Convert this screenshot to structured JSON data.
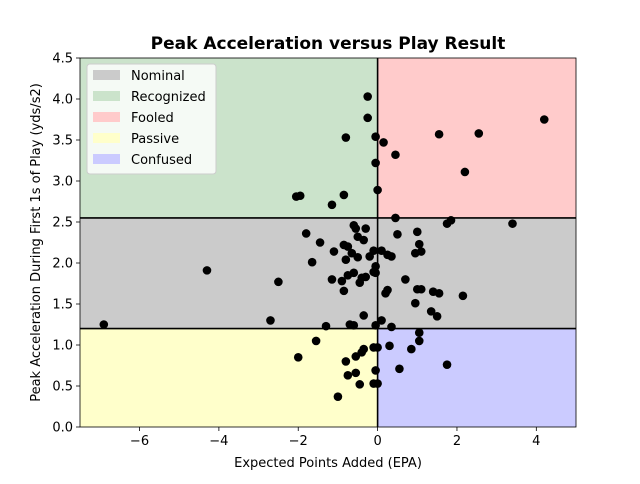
{
  "chart_data": {
    "type": "scatter",
    "title": "Peak Acceleration versus Play Result",
    "xlabel": "Expected Points Added (EPA)",
    "ylabel": "Peak Acceleration During First 1s of Play (yds/s2)",
    "xlim": [
      -7.5,
      5.0
    ],
    "ylim": [
      0.0,
      4.5
    ],
    "xticks": [
      -6,
      -4,
      -2,
      0,
      2,
      4
    ],
    "xtick_labels": [
      "−6",
      "−4",
      "−2",
      "0",
      "2",
      "4"
    ],
    "yticks": [
      0.0,
      0.5,
      1.0,
      1.5,
      2.0,
      2.5,
      3.0,
      3.5,
      4.0,
      4.5
    ],
    "ytick_labels": [
      "0.0",
      "0.5",
      "1.0",
      "1.5",
      "2.0",
      "2.5",
      "3.0",
      "3.5",
      "4.0",
      "4.5"
    ],
    "grid": false,
    "legend_position": "top-left",
    "threshold_x": 0,
    "threshold_y_low": 1.2,
    "threshold_y_high": 2.55,
    "regions": [
      {
        "name": "Nominal",
        "color": "#cbcbcb",
        "x": [
          -7.5,
          5.0
        ],
        "y": [
          1.2,
          2.55
        ]
      },
      {
        "name": "Recognized",
        "color": "#cbe3cb",
        "x": [
          -7.5,
          0
        ],
        "y": [
          2.55,
          4.5
        ]
      },
      {
        "name": "Fooled",
        "color": "#ffcbcb",
        "x": [
          0,
          5.0
        ],
        "y": [
          2.55,
          4.5
        ]
      },
      {
        "name": "Passive",
        "color": "#ffffcb",
        "x": [
          -7.5,
          0
        ],
        "y": [
          0.0,
          1.2
        ]
      },
      {
        "name": "Confused",
        "color": "#cbcbff",
        "x": [
          0,
          5.0
        ],
        "y": [
          0.0,
          1.2
        ]
      }
    ],
    "points": [
      [
        -6.9,
        1.25
      ],
      [
        -4.3,
        1.91
      ],
      [
        -2.5,
        1.77
      ],
      [
        -2.7,
        1.3
      ],
      [
        -1.8,
        2.36
      ],
      [
        -1.45,
        2.25
      ],
      [
        -1.65,
        2.01
      ],
      [
        -1.1,
        2.14
      ],
      [
        -1.15,
        1.8
      ],
      [
        -1.3,
        1.23
      ],
      [
        -0.85,
        1.66
      ],
      [
        -0.85,
        2.22
      ],
      [
        -0.75,
        2.2
      ],
      [
        -0.6,
        2.46
      ],
      [
        -0.55,
        2.42
      ],
      [
        -0.5,
        2.32
      ],
      [
        -0.35,
        2.28
      ],
      [
        -0.3,
        2.42
      ],
      [
        -0.2,
        2.08
      ],
      [
        -0.1,
        2.15
      ],
      [
        -0.05,
        1.96
      ],
      [
        -0.05,
        1.88
      ],
      [
        -0.1,
        1.89
      ],
      [
        -0.3,
        1.83
      ],
      [
        -0.4,
        1.82
      ],
      [
        -0.45,
        1.76
      ],
      [
        -0.6,
        1.88
      ],
      [
        -0.75,
        1.85
      ],
      [
        -0.8,
        2.04
      ],
      [
        -0.5,
        2.07
      ],
      [
        -0.65,
        2.12
      ],
      [
        -0.9,
        1.78
      ],
      [
        0.1,
        2.15
      ],
      [
        0.25,
        2.1
      ],
      [
        0.35,
        2.08
      ],
      [
        0.5,
        2.35
      ],
      [
        0.2,
        1.63
      ],
      [
        0.25,
        1.67
      ],
      [
        0.7,
        1.8
      ],
      [
        0.95,
        2.12
      ],
      [
        1.0,
        2.38
      ],
      [
        1.05,
        2.23
      ],
      [
        1.1,
        2.14
      ],
      [
        1.75,
        2.48
      ],
      [
        1.85,
        2.52
      ],
      [
        3.4,
        2.48
      ],
      [
        0.95,
        1.51
      ],
      [
        1.0,
        1.68
      ],
      [
        1.1,
        1.68
      ],
      [
        1.4,
        1.65
      ],
      [
        1.55,
        1.63
      ],
      [
        2.15,
        1.6
      ],
      [
        1.35,
        1.41
      ],
      [
        1.5,
        1.35
      ],
      [
        0.1,
        1.3
      ],
      [
        -0.05,
        1.24
      ],
      [
        -0.35,
        1.36
      ],
      [
        -0.6,
        1.24
      ],
      [
        -0.7,
        1.25
      ],
      [
        0.35,
        1.22
      ],
      [
        0.45,
        2.55
      ],
      [
        -2.05,
        2.81
      ],
      [
        -1.95,
        2.82
      ],
      [
        -1.15,
        2.71
      ],
      [
        -0.85,
        2.83
      ],
      [
        -0.8,
        3.53
      ],
      [
        -0.25,
        4.03
      ],
      [
        -0.25,
        3.77
      ],
      [
        -0.05,
        3.54
      ],
      [
        -0.05,
        3.22
      ],
      [
        0.0,
        2.89
      ],
      [
        0.15,
        3.47
      ],
      [
        0.45,
        3.32
      ],
      [
        1.55,
        3.57
      ],
      [
        2.55,
        3.58
      ],
      [
        4.2,
        3.75
      ],
      [
        2.2,
        3.11
      ],
      [
        -1.55,
        1.05
      ],
      [
        -2.0,
        0.85
      ],
      [
        -0.55,
        0.86
      ],
      [
        -0.4,
        0.91
      ],
      [
        -0.35,
        0.95
      ],
      [
        -0.8,
        0.8
      ],
      [
        -0.75,
        0.63
      ],
      [
        -0.55,
        0.66
      ],
      [
        -0.45,
        0.52
      ],
      [
        -0.1,
        0.97
      ],
      [
        0.0,
        0.97
      ],
      [
        0.3,
        0.99
      ],
      [
        -0.05,
        0.69
      ],
      [
        -0.1,
        0.53
      ],
      [
        0.0,
        0.53
      ],
      [
        -1.0,
        0.37
      ],
      [
        0.85,
        0.95
      ],
      [
        1.05,
        1.05
      ],
      [
        1.05,
        1.15
      ],
      [
        0.55,
        0.71
      ],
      [
        1.75,
        0.76
      ]
    ]
  }
}
